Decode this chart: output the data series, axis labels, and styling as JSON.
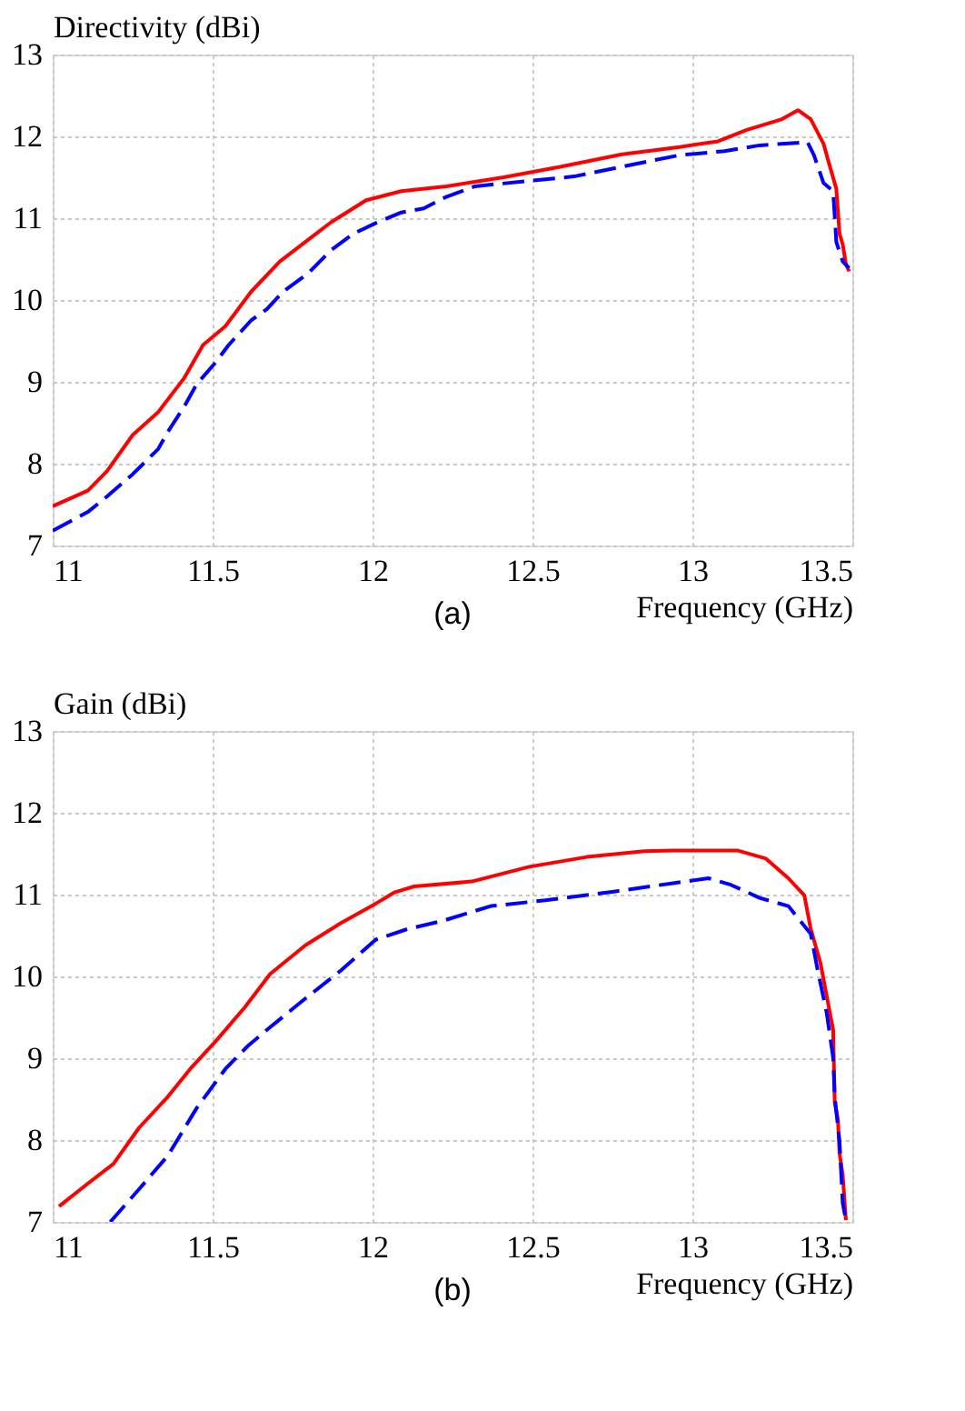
{
  "chart_data": [
    {
      "type": "line",
      "ylabel": "Directivity  (dBi)",
      "xlabel": "Frequency (GHz)",
      "annotations": [
        "(a)"
      ],
      "xlim": [
        11,
        13.5
      ],
      "xticks": [
        11,
        11.5,
        12,
        12.5,
        13,
        13.5
      ],
      "ylim": [
        7,
        13
      ],
      "yticks": [
        7,
        8,
        9,
        10,
        11,
        12,
        13
      ],
      "grid": true,
      "marker": "none",
      "series": [
        {
          "color": "#ff0000",
          "line_style": "solid",
          "x": [
            11.0,
            11.11,
            11.17,
            11.25,
            11.33,
            11.41,
            11.47,
            11.54,
            11.62,
            11.71,
            11.8,
            11.87,
            11.98,
            12.09,
            12.23,
            12.41,
            12.59,
            12.78,
            12.96,
            13.08,
            13.17,
            13.28,
            13.33,
            13.37,
            13.41,
            13.43,
            13.45,
            13.46,
            13.47,
            13.48,
            13.49
          ],
          "values": [
            7.48,
            7.67,
            7.91,
            8.35,
            8.63,
            9.04,
            9.45,
            9.68,
            10.1,
            10.47,
            10.74,
            10.95,
            11.22,
            11.33,
            11.39,
            11.5,
            11.63,
            11.78,
            11.87,
            11.94,
            12.08,
            12.21,
            12.32,
            12.21,
            11.91,
            11.63,
            11.36,
            10.81,
            10.68,
            10.44,
            10.35
          ]
        },
        {
          "color": "#0000ff",
          "line_style": "dashed",
          "x": [
            11.0,
            11.11,
            11.17,
            11.25,
            11.33,
            11.36,
            11.41,
            11.45,
            11.51,
            11.55,
            11.62,
            11.67,
            11.72,
            11.8,
            11.87,
            11.94,
            12.01,
            12.09,
            12.16,
            12.23,
            12.32,
            12.5,
            12.63,
            12.78,
            12.96,
            13.1,
            13.21,
            13.36,
            13.38,
            13.41,
            13.44,
            13.45,
            13.47,
            13.49
          ],
          "values": [
            7.18,
            7.41,
            7.6,
            7.87,
            8.18,
            8.39,
            8.69,
            8.97,
            9.24,
            9.45,
            9.75,
            9.89,
            10.1,
            10.33,
            10.61,
            10.81,
            10.94,
            11.07,
            11.12,
            11.26,
            11.39,
            11.46,
            11.51,
            11.63,
            11.77,
            11.82,
            11.89,
            11.93,
            11.77,
            11.43,
            11.33,
            10.71,
            10.47,
            10.39
          ]
        }
      ]
    },
    {
      "type": "line",
      "ylabel": "Gain  (dBi)",
      "xlabel": "Frequency (GHz)",
      "annotations": [
        "(b)"
      ],
      "xlim": [
        11,
        13.5
      ],
      "xticks": [
        11,
        11.5,
        12,
        12.5,
        13,
        13.5
      ],
      "ylim": [
        7,
        13
      ],
      "yticks": [
        7,
        8,
        9,
        10,
        11,
        12,
        13
      ],
      "grid": true,
      "marker": "none",
      "series": [
        {
          "color": "#ff0000",
          "line_style": "solid",
          "x": [
            11.02,
            11.11,
            11.19,
            11.27,
            11.36,
            11.43,
            11.51,
            11.6,
            11.68,
            11.79,
            11.9,
            12.01,
            12.07,
            12.13,
            12.31,
            12.49,
            12.67,
            12.85,
            12.94,
            13.14,
            13.23,
            13.3,
            13.35,
            13.37,
            13.4,
            13.42,
            13.44,
            13.445,
            13.455,
            13.46,
            13.47,
            13.48
          ],
          "values": [
            7.19,
            7.47,
            7.71,
            8.15,
            8.53,
            8.87,
            9.21,
            9.62,
            10.03,
            10.38,
            10.65,
            10.89,
            11.03,
            11.1,
            11.16,
            11.34,
            11.46,
            11.53,
            11.54,
            11.54,
            11.44,
            11.2,
            10.99,
            10.58,
            10.17,
            9.76,
            9.35,
            8.46,
            8.25,
            7.84,
            7.57,
            7.02
          ]
        },
        {
          "color": "#0000ff",
          "line_style": "dashed",
          "x": [
            11.18,
            11.27,
            11.36,
            11.45,
            11.54,
            11.61,
            11.68,
            11.79,
            11.9,
            12.01,
            12.11,
            12.22,
            12.37,
            12.54,
            12.76,
            12.94,
            13.05,
            13.12,
            13.21,
            13.3,
            13.37,
            13.39,
            13.42,
            13.44,
            13.445,
            13.46,
            13.47,
            13.48
          ],
          "values": [
            7.0,
            7.4,
            7.81,
            8.39,
            8.87,
            9.15,
            9.38,
            9.73,
            10.07,
            10.45,
            10.58,
            10.68,
            10.86,
            10.93,
            11.04,
            11.14,
            11.2,
            11.12,
            10.96,
            10.86,
            10.52,
            10.11,
            9.55,
            9.01,
            8.53,
            7.98,
            7.23,
            7.02
          ]
        }
      ]
    }
  ]
}
